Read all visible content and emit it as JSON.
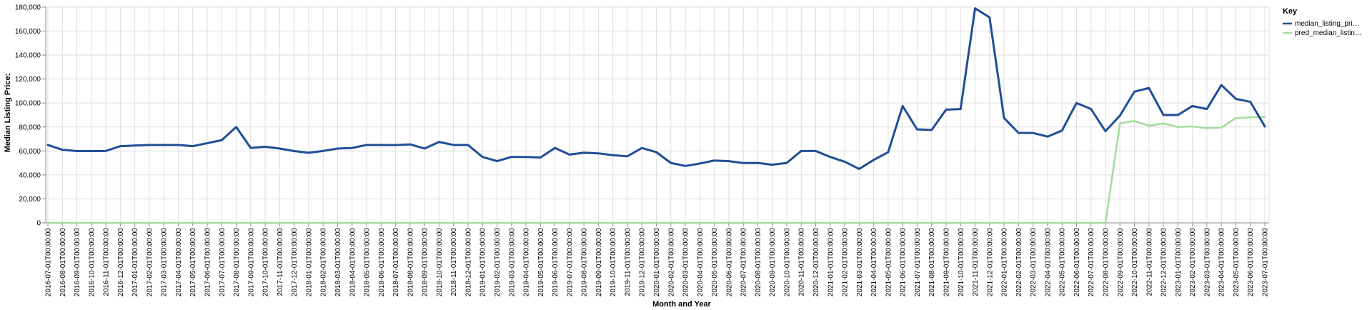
{
  "chart_data": {
    "type": "line",
    "xlabel": "Month and Year",
    "ylabel": "Median Listing Price:",
    "ylim": [
      0,
      180000
    ],
    "y_ticks": [
      0,
      20000,
      40000,
      60000,
      80000,
      100000,
      120000,
      140000,
      160000,
      180000
    ],
    "y_tick_labels": [
      "0",
      "20,000",
      "40,000",
      "60,000",
      "80,000",
      "100,000",
      "120,000",
      "140,000",
      "160,000",
      "180,000"
    ],
    "grid": true,
    "legend": {
      "title": "Key",
      "position": "top-right",
      "entries": [
        "median_listing_pri…",
        "pred_median_listin…"
      ]
    },
    "colors": [
      "#1f4e96",
      "#a1dc9b"
    ],
    "categories": [
      "2016-07-01T00:00:00",
      "2016-08-01T00:00:00",
      "2016-09-01T00:00:00",
      "2016-10-01T00:00:00",
      "2016-11-01T00:00:00",
      "2016-12-01T00:00:00",
      "2017-01-01T00:00:00",
      "2017-02-01T00:00:00",
      "2017-03-01T00:00:00",
      "2017-04-01T00:00:00",
      "2017-05-01T00:00:00",
      "2017-06-01T00:00:00",
      "2017-07-01T00:00:00",
      "2017-08-01T00:00:00",
      "2017-09-01T00:00:00",
      "2017-10-01T00:00:00",
      "2017-11-01T00:00:00",
      "2017-12-01T00:00:00",
      "2018-01-01T00:00:00",
      "2018-02-01T00:00:00",
      "2018-03-01T00:00:00",
      "2018-04-01T00:00:00",
      "2018-05-01T00:00:00",
      "2018-06-01T00:00:00",
      "2018-07-01T00:00:00",
      "2018-08-01T00:00:00",
      "2018-09-01T00:00:00",
      "2018-10-01T00:00:00",
      "2018-11-01T00:00:00",
      "2018-12-01T00:00:00",
      "2019-01-01T00:00:00",
      "2019-02-01T00:00:00",
      "2019-03-01T00:00:00",
      "2019-04-01T00:00:00",
      "2019-05-01T00:00:00",
      "2019-06-01T00:00:00",
      "2019-07-01T00:00:00",
      "2019-08-01T00:00:00",
      "2019-09-01T00:00:00",
      "2019-10-01T00:00:00",
      "2019-11-01T00:00:00",
      "2019-12-01T00:00:00",
      "2020-01-01T00:00:00",
      "2020-02-01T00:00:00",
      "2020-03-01T00:00:00",
      "2020-04-01T00:00:00",
      "2020-05-01T00:00:00",
      "2020-06-01T00:00:00",
      "2020-07-01T00:00:00",
      "2020-08-01T00:00:00",
      "2020-09-01T00:00:00",
      "2020-10-01T00:00:00",
      "2020-11-01T00:00:00",
      "2020-12-01T00:00:00",
      "2021-01-01T00:00:00",
      "2021-02-01T00:00:00",
      "2021-03-01T00:00:00",
      "2021-04-01T00:00:00",
      "2021-05-01T00:00:00",
      "2021-06-01T00:00:00",
      "2021-07-01T00:00:00",
      "2021-08-01T00:00:00",
      "2021-09-01T00:00:00",
      "2021-10-01T00:00:00",
      "2021-11-01T00:00:00",
      "2021-12-01T00:00:00",
      "2022-01-01T00:00:00",
      "2022-02-01T00:00:00",
      "2022-03-01T00:00:00",
      "2022-04-01T00:00:00",
      "2022-05-01T00:00:00",
      "2022-06-01T00:00:00",
      "2022-07-01T00:00:00",
      "2022-08-01T00:00:00",
      "2022-09-01T00:00:00",
      "2022-10-01T00:00:00",
      "2022-11-01T00:00:00",
      "2022-12-01T00:00:00",
      "2023-01-01T00:00:00",
      "2023-02-01T00:00:00",
      "2023-03-01T00:00:00",
      "2023-04-01T00:00:00",
      "2023-05-01T00:00:00",
      "2023-06-01T00:00:00",
      "2023-07-01T00:00:00"
    ],
    "series": [
      {
        "name": "median_listing_pri…",
        "values": [
          65000,
          61000,
          59900,
          59900,
          60000,
          64000,
          64500,
          65000,
          65000,
          65000,
          64000,
          66500,
          69000,
          80000,
          62500,
          63500,
          62000,
          59900,
          58500,
          60000,
          62000,
          62500,
          65000,
          65000,
          64900,
          65500,
          62000,
          67500,
          65000,
          65000,
          55000,
          51500,
          55000,
          55000,
          54500,
          62500,
          57000,
          58500,
          58000,
          56500,
          55500,
          62500,
          59000,
          50000,
          47500,
          49500,
          52000,
          51500,
          49900,
          50000,
          48500,
          50000,
          60000,
          60000,
          55000,
          51000,
          45000,
          52500,
          59000,
          97500,
          78000,
          77500,
          94500,
          95000,
          179000,
          171500,
          87500,
          75000,
          75000,
          72000,
          77000,
          100000,
          95000,
          76500,
          89500,
          109500,
          112500,
          90000,
          90000,
          97500,
          95000,
          115000,
          103500,
          101000,
          80500
        ]
      },
      {
        "name": "pred_median_listin…",
        "values": [
          0,
          0,
          0,
          0,
          0,
          0,
          0,
          0,
          0,
          0,
          0,
          0,
          0,
          0,
          0,
          0,
          0,
          0,
          0,
          0,
          0,
          0,
          0,
          0,
          0,
          0,
          0,
          0,
          0,
          0,
          0,
          0,
          0,
          0,
          0,
          0,
          0,
          0,
          0,
          0,
          0,
          0,
          0,
          0,
          0,
          0,
          0,
          0,
          0,
          0,
          0,
          0,
          0,
          0,
          0,
          0,
          0,
          0,
          0,
          0,
          0,
          0,
          0,
          0,
          0,
          0,
          0,
          0,
          0,
          0,
          0,
          0,
          0,
          0,
          83000,
          85000,
          81000,
          83000,
          80000,
          80500,
          79000,
          79500,
          87500,
          88000,
          88500
        ]
      }
    ]
  }
}
